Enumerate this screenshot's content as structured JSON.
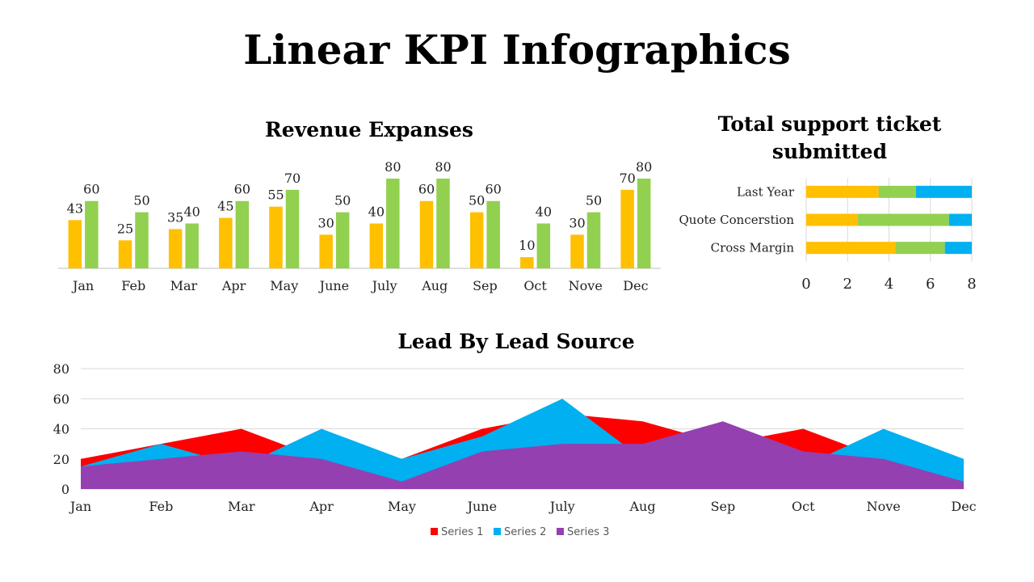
{
  "page": {
    "title": "Linear KPI Infographics"
  },
  "chart_data": [
    {
      "id": "revenue",
      "type": "bar",
      "title": "Revenue Expanses",
      "categories": [
        "Jan",
        "Feb",
        "Mar",
        "Apr",
        "May",
        "June",
        "July",
        "Aug",
        "Sep",
        "Oct",
        "Nove",
        "Dec"
      ],
      "series": [
        {
          "name": "Series 1",
          "color": "#FFC000",
          "values": [
            43,
            25,
            35,
            45,
            55,
            30,
            40,
            60,
            50,
            10,
            30,
            70
          ]
        },
        {
          "name": "Series 2",
          "color": "#92D050",
          "values": [
            60,
            50,
            40,
            60,
            70,
            50,
            80,
            80,
            60,
            40,
            50,
            80
          ]
        }
      ],
      "ylim": [
        0,
        85
      ],
      "show_value_axis": false,
      "data_labels": true
    },
    {
      "id": "tickets",
      "type": "bar",
      "orientation": "horizontal",
      "stacked": true,
      "title": "Total support ticket submitted",
      "title_lines": [
        "Total support ticket",
        "submitted"
      ],
      "categories": [
        "Last Year",
        "Quote Concerstion",
        "Cross Margin"
      ],
      "series": [
        {
          "name": "Series 1",
          "color": "#FFC000",
          "values": [
            3.5,
            2.5,
            4.3
          ]
        },
        {
          "name": "Series 2",
          "color": "#92D050",
          "values": [
            1.8,
            4.4,
            2.4
          ]
        },
        {
          "name": "Series 3",
          "color": "#00B0F0",
          "values": [
            2.7,
            1.1,
            1.3
          ]
        }
      ],
      "xlim": [
        0,
        8
      ],
      "xticks": [
        0,
        2,
        4,
        6,
        8
      ],
      "grid": true
    },
    {
      "id": "leads",
      "type": "area",
      "title": "Lead By Lead Source",
      "x": [
        "Jan",
        "Feb",
        "Mar",
        "Apr",
        "May",
        "June",
        "July",
        "Aug",
        "Sep",
        "Oct",
        "Nove",
        "Dec"
      ],
      "series": [
        {
          "name": "Series 1",
          "color": "#FF0000",
          "values": [
            20,
            30,
            40,
            20,
            20,
            40,
            50,
            45,
            30,
            40,
            20,
            5
          ]
        },
        {
          "name": "Series 2",
          "color": "#00B0F0",
          "values": [
            15,
            30,
            15,
            40,
            20,
            35,
            60,
            20,
            25,
            15,
            40,
            20
          ]
        },
        {
          "name": "Series 3",
          "color": "#9440B1",
          "values": [
            15,
            20,
            25,
            20,
            5,
            25,
            30,
            30,
            45,
            25,
            20,
            5
          ]
        }
      ],
      "ylim": [
        0,
        80
      ],
      "yticks": [
        0,
        20,
        40,
        60,
        80
      ],
      "grid": true,
      "legend": "bottom"
    }
  ]
}
